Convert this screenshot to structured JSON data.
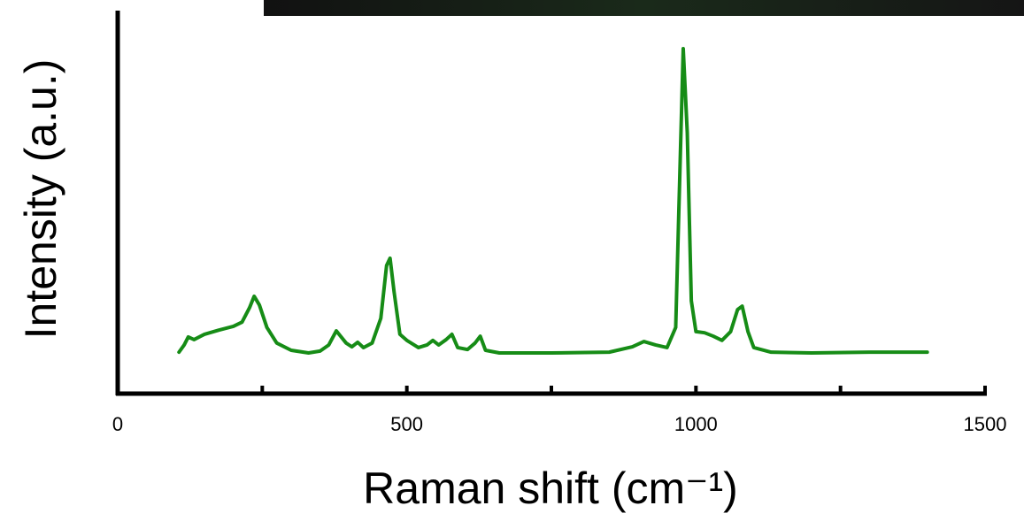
{
  "chart_data": {
    "type": "line",
    "xlabel": "Raman shift (cm⁻¹)",
    "ylabel": "Intensity (a.u.)",
    "xlim": [
      0,
      1500
    ],
    "xticks": [
      0,
      500,
      1000,
      1500
    ],
    "xminor_ticks": [
      250,
      750,
      1250
    ],
    "ylim": [
      0,
      1
    ],
    "series": [
      {
        "color": "#168c16",
        "x": [
          106,
          115,
          122,
          132,
          150,
          175,
          200,
          215,
          228,
          236,
          245,
          258,
          275,
          300,
          330,
          350,
          365,
          378,
          395,
          405,
          415,
          425,
          440,
          455,
          465,
          471,
          478,
          488,
          500,
          520,
          535,
          545,
          555,
          568,
          578,
          588,
          605,
          618,
          627,
          636,
          660,
          750,
          850,
          890,
          910,
          930,
          950,
          965,
          972,
          978,
          985,
          992,
          1000,
          1015,
          1030,
          1045,
          1060,
          1072,
          1080,
          1090,
          1100,
          1130,
          1200,
          1300,
          1400
        ],
        "values": [
          0.109,
          0.128,
          0.149,
          0.142,
          0.156,
          0.167,
          0.177,
          0.188,
          0.226,
          0.256,
          0.233,
          0.174,
          0.133,
          0.114,
          0.107,
          0.112,
          0.128,
          0.165,
          0.133,
          0.123,
          0.135,
          0.121,
          0.133,
          0.198,
          0.337,
          0.356,
          0.267,
          0.156,
          0.14,
          0.121,
          0.128,
          0.14,
          0.128,
          0.142,
          0.156,
          0.121,
          0.116,
          0.133,
          0.151,
          0.114,
          0.107,
          0.107,
          0.109,
          0.123,
          0.137,
          0.128,
          0.121,
          0.174,
          0.57,
          0.907,
          0.686,
          0.244,
          0.163,
          0.16,
          0.151,
          0.14,
          0.163,
          0.221,
          0.23,
          0.163,
          0.121,
          0.109,
          0.107,
          0.109,
          0.109
        ]
      }
    ]
  }
}
